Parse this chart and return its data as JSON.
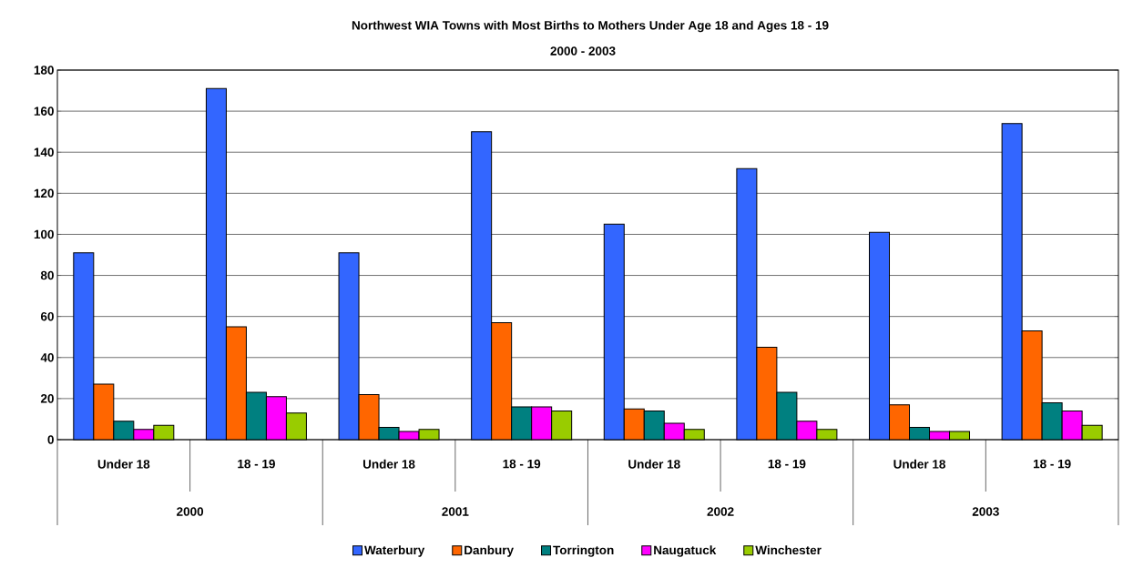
{
  "chart_data": {
    "type": "bar",
    "title": "Northwest WIA Towns with Most Births to Mothers Under Age 18 and Ages 18 - 19",
    "subtitle": "2000 - 2003",
    "categories": [
      "Under 18",
      "18 - 19",
      "Under 18",
      "18 - 19",
      "Under 18",
      "18 - 19",
      "Under 18",
      "18 - 19"
    ],
    "annotations": [
      "2000",
      "2001",
      "2002",
      "2003"
    ],
    "series": [
      {
        "name": "Waterbury",
        "color": "#3366ff",
        "values": [
          91,
          171,
          91,
          150,
          105,
          132,
          101,
          154
        ]
      },
      {
        "name": "Danbury",
        "color": "#ff6600",
        "values": [
          27,
          55,
          22,
          57,
          15,
          45,
          17,
          53
        ]
      },
      {
        "name": "Torrington",
        "color": "#008080",
        "values": [
          9,
          23,
          6,
          16,
          14,
          23,
          6,
          18
        ]
      },
      {
        "name": "Naugatuck",
        "color": "#ff00ff",
        "values": [
          5,
          21,
          4,
          16,
          8,
          9,
          4,
          14
        ]
      },
      {
        "name": "Winchester",
        "color": "#99cc00",
        "values": [
          7,
          13,
          5,
          14,
          5,
          5,
          4,
          7
        ]
      }
    ],
    "ylim": [
      0,
      180
    ],
    "yticks": [
      0,
      20,
      40,
      60,
      80,
      100,
      120,
      140,
      160,
      180
    ],
    "grid": "y",
    "legend": "bottom"
  }
}
